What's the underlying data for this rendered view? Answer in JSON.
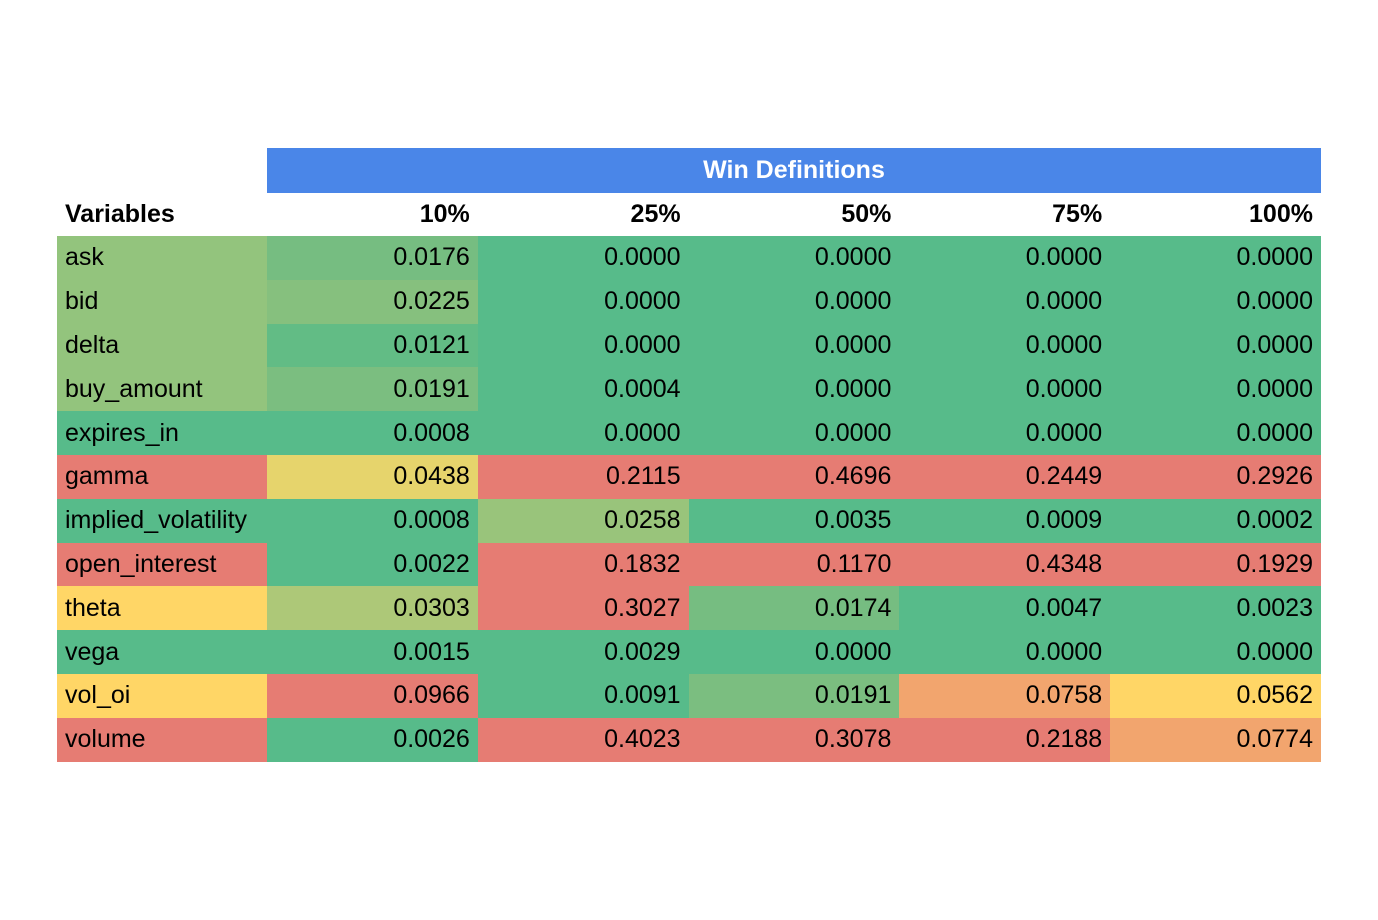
{
  "chart_data": {
    "type": "table",
    "title": "Win Definitions",
    "row_header_label": "Variables",
    "columns": [
      "10%",
      "25%",
      "50%",
      "75%",
      "100%"
    ],
    "rows": [
      {
        "name": "ask",
        "name_color": "#93c47d",
        "values": [
          "0.0176",
          "0.0000",
          "0.0000",
          "0.0000",
          "0.0000"
        ],
        "colors": [
          "#76bd81",
          "#57bb8a",
          "#57bb8a",
          "#57bb8a",
          "#57bb8a"
        ]
      },
      {
        "name": "bid",
        "name_color": "#93c47d",
        "values": [
          "0.0225",
          "0.0000",
          "0.0000",
          "0.0000",
          "0.0000"
        ],
        "colors": [
          "#86c07e",
          "#57bb8a",
          "#57bb8a",
          "#57bb8a",
          "#57bb8a"
        ]
      },
      {
        "name": "delta",
        "name_color": "#93c47d",
        "values": [
          "0.0121",
          "0.0000",
          "0.0000",
          "0.0000",
          "0.0000"
        ],
        "colors": [
          "#62bc85",
          "#57bb8a",
          "#57bb8a",
          "#57bb8a",
          "#57bb8a"
        ]
      },
      {
        "name": "buy_amount",
        "name_color": "#93c47d",
        "values": [
          "0.0191",
          "0.0004",
          "0.0000",
          "0.0000",
          "0.0000"
        ],
        "colors": [
          "#7bbe80",
          "#57bb8a",
          "#57bb8a",
          "#57bb8a",
          "#57bb8a"
        ]
      },
      {
        "name": "expires_in",
        "name_color": "#57bb8a",
        "values": [
          "0.0008",
          "0.0000",
          "0.0000",
          "0.0000",
          "0.0000"
        ],
        "colors": [
          "#57bb8a",
          "#57bb8a",
          "#57bb8a",
          "#57bb8a",
          "#57bb8a"
        ]
      },
      {
        "name": "gamma",
        "name_color": "#e67c73",
        "values": [
          "0.0438",
          "0.2115",
          "0.4696",
          "0.2449",
          "0.2926"
        ],
        "colors": [
          "#e6d46c",
          "#e67c73",
          "#e67c73",
          "#e67c73",
          "#e67c73"
        ]
      },
      {
        "name": "implied_volatility",
        "name_color": "#57bb8a",
        "values": [
          "0.0008",
          "0.0258",
          "0.0035",
          "0.0009",
          "0.0002"
        ],
        "colors": [
          "#57bb8a",
          "#99c47b",
          "#57bb8a",
          "#57bb8a",
          "#57bb8a"
        ]
      },
      {
        "name": "open_interest",
        "name_color": "#e67c73",
        "values": [
          "0.0022",
          "0.1832",
          "0.1170",
          "0.4348",
          "0.1929"
        ],
        "colors": [
          "#57bb8a",
          "#e67c73",
          "#e67c73",
          "#e67c73",
          "#e67c73"
        ]
      },
      {
        "name": "theta",
        "name_color": "#ffd666",
        "values": [
          "0.0303",
          "0.3027",
          "0.0174",
          "0.0047",
          "0.0023"
        ],
        "colors": [
          "#adc878",
          "#e67c73",
          "#76bd81",
          "#57bb8a",
          "#57bb8a"
        ]
      },
      {
        "name": "vega",
        "name_color": "#57bb8a",
        "values": [
          "0.0015",
          "0.0029",
          "0.0000",
          "0.0000",
          "0.0000"
        ],
        "colors": [
          "#57bb8a",
          "#57bb8a",
          "#57bb8a",
          "#57bb8a",
          "#57bb8a"
        ]
      },
      {
        "name": "vol_oi",
        "name_color": "#ffd666",
        "values": [
          "0.0966",
          "0.0091",
          "0.0191",
          "0.0758",
          "0.0562"
        ],
        "colors": [
          "#e67c73",
          "#57bb8a",
          "#7bbe80",
          "#f2a56e",
          "#ffd666"
        ]
      },
      {
        "name": "volume",
        "name_color": "#e67c73",
        "values": [
          "0.0026",
          "0.4023",
          "0.3078",
          "0.2188",
          "0.0774"
        ],
        "colors": [
          "#57bb8a",
          "#e67c73",
          "#e67c73",
          "#e67c73",
          "#f2a56e"
        ]
      }
    ]
  }
}
